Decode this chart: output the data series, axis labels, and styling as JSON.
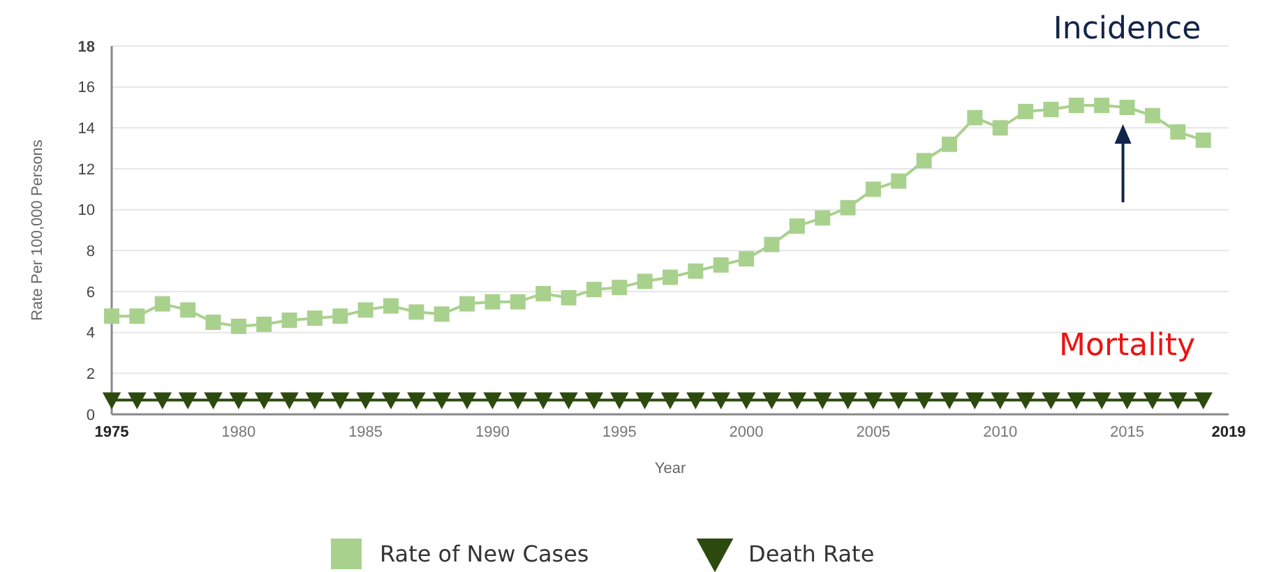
{
  "chart_data": {
    "type": "line",
    "xlabel": "Year",
    "ylabel": "Rate Per 100,000 Persons",
    "x": [
      1975,
      1976,
      1977,
      1978,
      1979,
      1980,
      1981,
      1982,
      1983,
      1984,
      1985,
      1986,
      1987,
      1988,
      1989,
      1990,
      1991,
      1992,
      1993,
      1994,
      1995,
      1996,
      1997,
      1998,
      1999,
      2000,
      2001,
      2002,
      2003,
      2004,
      2005,
      2006,
      2007,
      2008,
      2009,
      2010,
      2011,
      2012,
      2013,
      2014,
      2015,
      2016,
      2017,
      2018
    ],
    "series": [
      {
        "name": "Rate of New Cases",
        "color": "#a9d18e",
        "marker": "square",
        "values": [
          4.8,
          4.8,
          5.4,
          5.1,
          4.5,
          4.3,
          4.4,
          4.6,
          4.7,
          4.8,
          5.1,
          5.3,
          5.0,
          4.9,
          5.4,
          5.5,
          5.5,
          5.9,
          5.7,
          6.1,
          6.2,
          6.5,
          6.7,
          7.0,
          7.3,
          7.6,
          8.3,
          9.2,
          9.6,
          10.1,
          11.0,
          11.4,
          12.4,
          13.2,
          14.5,
          14.0,
          14.8,
          14.9,
          15.1,
          15.1,
          15.0,
          14.6,
          13.8,
          13.4
        ]
      },
      {
        "name": "Death Rate",
        "color": "#2d4a0e",
        "marker": "triangle",
        "values": [
          0.7,
          0.7,
          0.7,
          0.7,
          0.7,
          0.7,
          0.7,
          0.7,
          0.7,
          0.7,
          0.7,
          0.7,
          0.7,
          0.7,
          0.7,
          0.7,
          0.7,
          0.7,
          0.7,
          0.7,
          0.7,
          0.7,
          0.7,
          0.7,
          0.7,
          0.7,
          0.7,
          0.7,
          0.7,
          0.7,
          0.7,
          0.7,
          0.7,
          0.7,
          0.7,
          0.7,
          0.7,
          0.7,
          0.7,
          0.7,
          0.7,
          0.7,
          0.7,
          0.7
        ]
      }
    ],
    "xlim": [
      1975,
      2019
    ],
    "xticks": [
      1975,
      1980,
      1985,
      1990,
      1995,
      2000,
      2005,
      2010,
      2015,
      2019
    ],
    "ylim": [
      0,
      18
    ],
    "yticks": [
      0,
      2,
      4,
      6,
      8,
      10,
      12,
      14,
      16,
      18
    ],
    "grid": "y",
    "legend": "bottom",
    "annotations": [
      {
        "text": "Incidence",
        "x": 2015,
        "y": 15.0
      },
      {
        "text": "Mortality",
        "x": 2015,
        "y": 0.7
      }
    ]
  }
}
